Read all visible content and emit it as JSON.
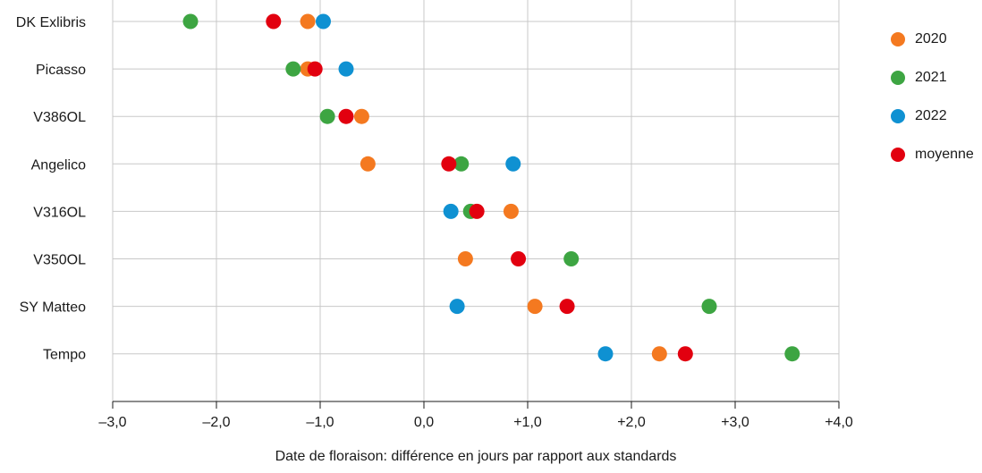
{
  "chart_data": {
    "type": "scatter",
    "title": "",
    "xlabel": "Date de floraison: différence en jours par rapport aux standards",
    "ylabel": "",
    "xlim": [
      -3,
      4
    ],
    "xticks": [
      -3,
      -2,
      -1,
      0,
      1,
      2,
      3,
      4
    ],
    "xtick_labels": [
      "–3,0",
      "–2,0",
      "–1,0",
      "0,0",
      "+1,0",
      "+2,0",
      "+3,0",
      "+4,0"
    ],
    "grid": true,
    "legend_position": "right",
    "categories": [
      "DK Exlibris",
      "Picasso",
      "V386OL",
      "Angelico",
      "V316OL",
      "V350OL",
      "SY Matteo",
      "Tempo"
    ],
    "series": [
      {
        "name": "2020",
        "color": "#f47920",
        "values": [
          -1.12,
          -1.12,
          -0.6,
          -0.54,
          0.84,
          0.4,
          1.07,
          2.27
        ]
      },
      {
        "name": "2021",
        "color": "#3da542",
        "values": [
          -2.25,
          -1.26,
          -0.93,
          0.36,
          0.45,
          1.42,
          2.75,
          3.55
        ]
      },
      {
        "name": "2022",
        "color": "#0f91d2",
        "values": [
          -0.97,
          -0.75,
          null,
          0.86,
          0.26,
          null,
          0.32,
          1.75
        ]
      },
      {
        "name": "moyenne",
        "color": "#e2000f",
        "values": [
          -1.45,
          -1.05,
          -0.75,
          0.24,
          0.51,
          0.91,
          1.38,
          2.52
        ]
      }
    ]
  }
}
